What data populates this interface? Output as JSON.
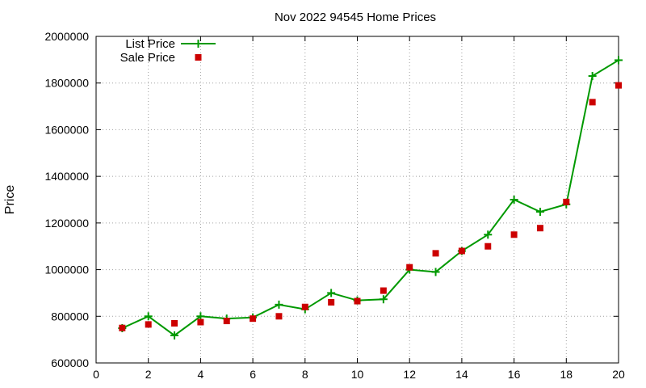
{
  "chart_data": {
    "type": "line",
    "title": "Nov 2022 94545 Home Prices",
    "xlabel": "",
    "ylabel": "Price",
    "xlim": [
      0,
      20
    ],
    "ylim": [
      600000,
      2000000
    ],
    "xticks": [
      0,
      2,
      4,
      6,
      8,
      10,
      12,
      14,
      16,
      18,
      20
    ],
    "yticks": [
      600000,
      800000,
      1000000,
      1200000,
      1400000,
      1600000,
      1800000,
      2000000
    ],
    "grid": true,
    "legend_position": "top-left",
    "x": [
      1,
      2,
      3,
      4,
      5,
      6,
      7,
      8,
      9,
      10,
      11,
      12,
      13,
      14,
      15,
      16,
      17,
      18,
      19,
      20
    ],
    "series": [
      {
        "name": "List Price",
        "style": "line-with-plus-markers",
        "color": "#009900",
        "values": [
          749000,
          800000,
          718000,
          800000,
          790000,
          795000,
          850000,
          830000,
          900000,
          868000,
          873000,
          1000000,
          990000,
          1080000,
          1150000,
          1300000,
          1248000,
          1280000,
          1830000,
          1898000
        ]
      },
      {
        "name": "Sale Price",
        "style": "square-markers",
        "color": "#cc0000",
        "values": [
          750000,
          765000,
          770000,
          775000,
          780000,
          790000,
          800000,
          840000,
          860000,
          865000,
          910000,
          1010000,
          1070000,
          1080000,
          1100000,
          1150000,
          1178000,
          1290000,
          1718000,
          1790000
        ]
      }
    ]
  }
}
